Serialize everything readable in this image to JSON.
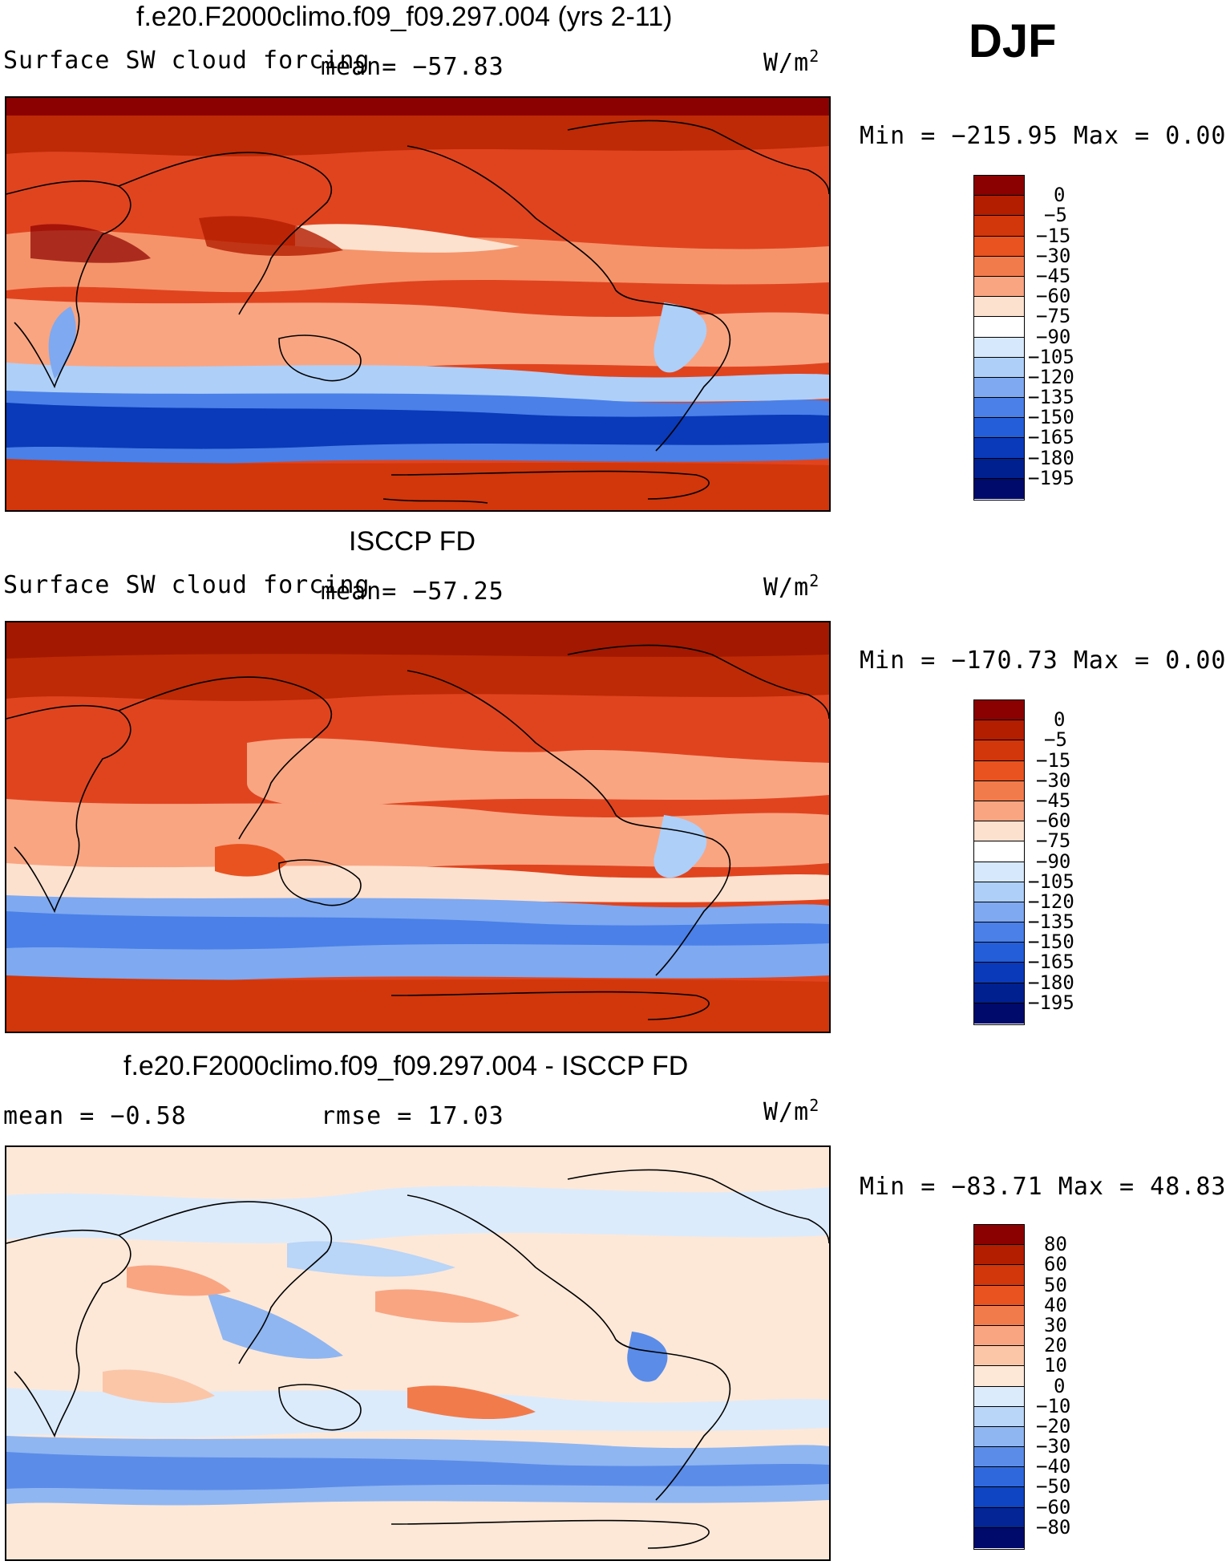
{
  "season": "DJF",
  "panels": [
    {
      "title": "f.e20.F2000climo.f09_f09.297.004 (yrs 2-11)",
      "left_label": "Surface SW cloud forcing",
      "center_label": "mean=  −57.83",
      "units_base": "W/m",
      "units_exp": "2",
      "minmax": "Min  =  −215.95  Max  =     0.00",
      "levels": [
        "0",
        "−5",
        "−15",
        "−30",
        "−45",
        "−60",
        "−75",
        "−90",
        "−105",
        "−120",
        "−135",
        "−150",
        "−165",
        "−180",
        "−195"
      ],
      "colors": [
        "#8b0000",
        "#b31d00",
        "#d2360b",
        "#e85320",
        "#f27b4c",
        "#f9a582",
        "#fde1cf",
        "#ffffff",
        "#d6e8fb",
        "#aecff8",
        "#7fa9f0",
        "#4a80e8",
        "#245ed8",
        "#0a3ab9",
        "#00208f",
        "#000a6b"
      ]
    },
    {
      "title": "ISCCP FD",
      "left_label": "Surface SW cloud forcing",
      "center_label": "mean=  −57.25",
      "units_base": "W/m",
      "units_exp": "2",
      "minmax": "Min  =  −170.73  Max  =     0.00",
      "levels": [
        "0",
        "−5",
        "−15",
        "−30",
        "−45",
        "−60",
        "−75",
        "−90",
        "−105",
        "−120",
        "−135",
        "−150",
        "−165",
        "−180",
        "−195"
      ],
      "colors": [
        "#8b0000",
        "#b31d00",
        "#d2360b",
        "#e85320",
        "#f27b4c",
        "#f9a582",
        "#fde1cf",
        "#ffffff",
        "#d6e8fb",
        "#aecff8",
        "#7fa9f0",
        "#4a80e8",
        "#245ed8",
        "#0a3ab9",
        "#00208f",
        "#000a6b"
      ]
    },
    {
      "title": "f.e20.F2000climo.f09_f09.297.004 - ISCCP FD",
      "left_label": "mean  =    −0.58",
      "center_label": "rmse  =    17.03",
      "units_base": "W/m",
      "units_exp": "2",
      "minmax": "Min  =  −83.71  Max  =    48.83",
      "levels": [
        "80",
        "60",
        "50",
        "40",
        "30",
        "20",
        "10",
        "0",
        "−10",
        "−20",
        "−30",
        "−40",
        "−50",
        "−60",
        "−80"
      ],
      "colors": [
        "#8b0000",
        "#b31d00",
        "#d2360b",
        "#e85320",
        "#f27b4c",
        "#f9a582",
        "#fbc6a8",
        "#fde8d8",
        "#dcebfb",
        "#b9d5f7",
        "#8fb6f1",
        "#5b8ce8",
        "#2f68dc",
        "#0f44c2",
        "#032596",
        "#000a6b"
      ]
    }
  ]
}
